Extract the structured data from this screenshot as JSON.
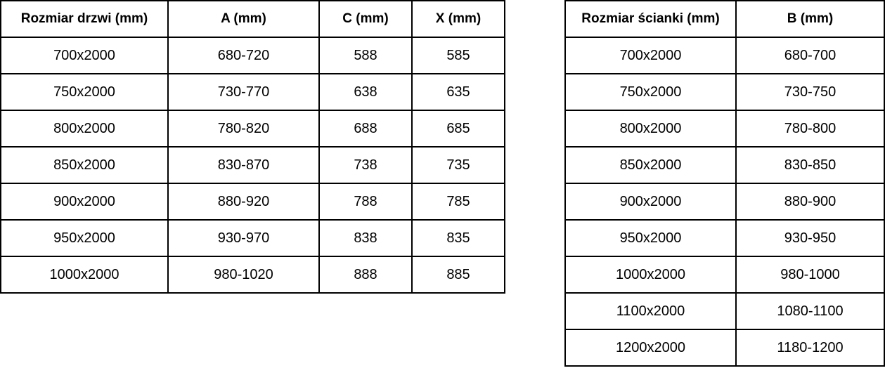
{
  "colors": {
    "border": "#000000",
    "text": "#000000",
    "background": "#ffffff"
  },
  "doors_table": {
    "headers": [
      "Rozmiar drzwi (mm)",
      "A (mm)",
      "C (mm)",
      "X (mm)"
    ],
    "rows": [
      [
        "700x2000",
        "680-720",
        "588",
        "585"
      ],
      [
        "750x2000",
        "730-770",
        "638",
        "635"
      ],
      [
        "800x2000",
        "780-820",
        "688",
        "685"
      ],
      [
        "850x2000",
        "830-870",
        "738",
        "735"
      ],
      [
        "900x2000",
        "880-920",
        "788",
        "785"
      ],
      [
        "950x2000",
        "930-970",
        "838",
        "835"
      ],
      [
        "1000x2000",
        "980-1020",
        "888",
        "885"
      ]
    ]
  },
  "wall_table": {
    "headers": [
      "Rozmiar ścianki (mm)",
      "B (mm)"
    ],
    "rows": [
      [
        "700x2000",
        "680-700"
      ],
      [
        "750x2000",
        "730-750"
      ],
      [
        "800x2000",
        "780-800"
      ],
      [
        "850x2000",
        "830-850"
      ],
      [
        "900x2000",
        "880-900"
      ],
      [
        "950x2000",
        "930-950"
      ],
      [
        "1000x2000",
        "980-1000"
      ],
      [
        "1100x2000",
        "1080-1100"
      ],
      [
        "1200x2000",
        "1180-1200"
      ]
    ]
  }
}
